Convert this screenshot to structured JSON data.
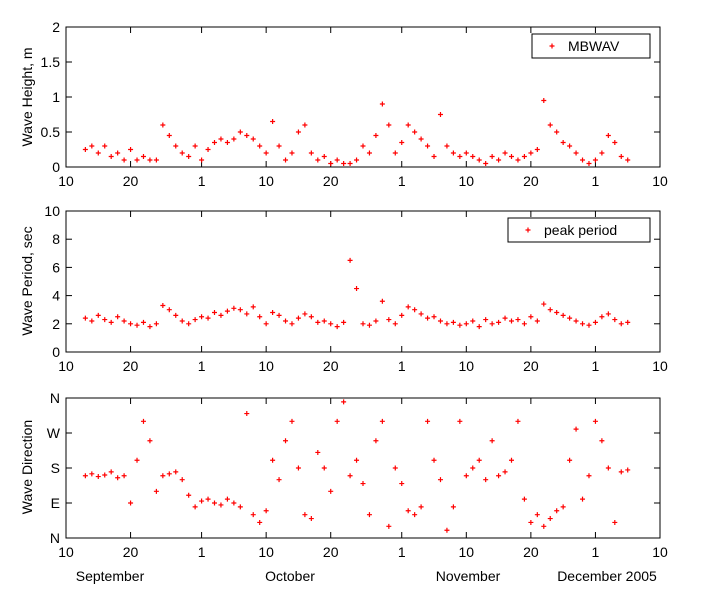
{
  "chart_data": [
    {
      "type": "scatter",
      "ylabel": "Wave Height, m",
      "ylim": [
        0,
        2
      ],
      "yticks": [
        0,
        0.5,
        1,
        1.5,
        2
      ],
      "ytick_labels": [
        "0",
        "0.5",
        "1",
        "1.5",
        "2"
      ],
      "xticks": [
        "10",
        "20",
        "1",
        "10",
        "20",
        "1",
        "10",
        "20",
        "1",
        "10"
      ],
      "legend": {
        "position": "top-right",
        "label": "MBWAV"
      },
      "marker_color": "#ff0000",
      "series": [
        {
          "name": "MBWAV",
          "x_day_of_2005": [
            256,
            257,
            258,
            259,
            260,
            261,
            262,
            263,
            264,
            265,
            266,
            267,
            268,
            269,
            270,
            271,
            272,
            273,
            274,
            275,
            276,
            277,
            278,
            279,
            280,
            281,
            282,
            283,
            284,
            285,
            286,
            287,
            288,
            289,
            290,
            291,
            292,
            293,
            294,
            295,
            296,
            297,
            298,
            299,
            300,
            301,
            302,
            303,
            304,
            305,
            306,
            307,
            308,
            309,
            310,
            311,
            312,
            313,
            314,
            315,
            316,
            317,
            318,
            319,
            320,
            321,
            322,
            323,
            324,
            325,
            326,
            327,
            328,
            329,
            330,
            331,
            332,
            333,
            334,
            335,
            336,
            337,
            338,
            339,
            340
          ],
          "y": [
            0.25,
            0.3,
            0.2,
            0.3,
            0.15,
            0.2,
            0.1,
            0.25,
            0.1,
            0.15,
            0.1,
            0.1,
            0.6,
            0.45,
            0.3,
            0.2,
            0.15,
            0.3,
            0.1,
            0.25,
            0.35,
            0.4,
            0.35,
            0.4,
            0.5,
            0.45,
            0.4,
            0.3,
            0.2,
            0.65,
            0.3,
            0.1,
            0.2,
            0.5,
            0.6,
            0.2,
            0.1,
            0.15,
            0.05,
            0.1,
            0.05,
            0.05,
            0.1,
            0.3,
            0.2,
            0.45,
            0.9,
            0.6,
            0.2,
            0.35,
            0.6,
            0.5,
            0.4,
            0.3,
            0.15,
            0.75,
            0.3,
            0.2,
            0.15,
            0.2,
            0.15,
            0.1,
            0.05,
            0.15,
            0.1,
            0.2,
            0.15,
            0.1,
            0.15,
            0.2,
            0.25,
            0.95,
            0.6,
            0.5,
            0.35,
            0.3,
            0.2,
            0.1,
            0.05,
            0.1,
            0.2,
            0.45,
            0.35,
            0.15,
            0.1
          ]
        }
      ]
    },
    {
      "type": "scatter",
      "ylabel": "Wave Period, sec",
      "ylim": [
        0,
        10
      ],
      "yticks": [
        0,
        2,
        4,
        6,
        8,
        10
      ],
      "ytick_labels": [
        "0",
        "2",
        "4",
        "6",
        "8",
        "10"
      ],
      "xticks": [
        "10",
        "20",
        "1",
        "10",
        "20",
        "1",
        "10",
        "20",
        "1",
        "10"
      ],
      "legend": {
        "position": "top-right",
        "label": "peak period"
      },
      "marker_color": "#ff0000",
      "series": [
        {
          "name": "peak period",
          "x_day_of_2005": [
            256,
            257,
            258,
            259,
            260,
            261,
            262,
            263,
            264,
            265,
            266,
            267,
            268,
            269,
            270,
            271,
            272,
            273,
            274,
            275,
            276,
            277,
            278,
            279,
            280,
            281,
            282,
            283,
            284,
            285,
            286,
            287,
            288,
            289,
            290,
            291,
            292,
            293,
            294,
            295,
            296,
            297,
            298,
            299,
            300,
            301,
            302,
            303,
            304,
            305,
            306,
            307,
            308,
            309,
            310,
            311,
            312,
            313,
            314,
            315,
            316,
            317,
            318,
            319,
            320,
            321,
            322,
            323,
            324,
            325,
            326,
            327,
            328,
            329,
            330,
            331,
            332,
            333,
            334,
            335,
            336,
            337,
            338,
            339,
            340
          ],
          "y": [
            2.4,
            2.2,
            2.6,
            2.3,
            2.1,
            2.5,
            2.2,
            2.0,
            1.9,
            2.1,
            1.8,
            2.0,
            3.3,
            3.0,
            2.6,
            2.2,
            2.0,
            2.3,
            2.5,
            2.4,
            2.8,
            2.6,
            2.9,
            3.1,
            3.0,
            2.7,
            3.2,
            2.5,
            2.0,
            2.8,
            2.6,
            2.2,
            2.0,
            2.4,
            2.7,
            2.5,
            2.1,
            2.2,
            2.0,
            1.8,
            2.1,
            6.5,
            4.5,
            2.0,
            1.9,
            2.2,
            3.6,
            2.3,
            2.0,
            2.6,
            3.2,
            3.0,
            2.7,
            2.4,
            2.5,
            2.2,
            2.0,
            2.1,
            1.9,
            2.0,
            2.2,
            1.8,
            2.3,
            2.0,
            2.1,
            2.4,
            2.2,
            2.3,
            2.0,
            2.5,
            2.2,
            3.4,
            3.0,
            2.8,
            2.6,
            2.4,
            2.2,
            2.0,
            1.9,
            2.1,
            2.5,
            2.7,
            2.3,
            2.0,
            2.1
          ]
        }
      ]
    },
    {
      "type": "scatter",
      "ylabel": "Wave Direction",
      "ylim": [
        0,
        360
      ],
      "yticks": [
        0,
        90,
        180,
        270,
        360
      ],
      "ytick_labels": [
        "N",
        "E",
        "S",
        "W",
        "N"
      ],
      "xticks": [
        "10",
        "20",
        "1",
        "10",
        "20",
        "1",
        "10",
        "20",
        "1",
        "10"
      ],
      "xlabels": [
        "September",
        "October",
        "November",
        "December 2005"
      ],
      "marker_color": "#ff0000",
      "series": [
        {
          "name": "",
          "x_day_of_2005": [
            256,
            257,
            258,
            259,
            260,
            261,
            262,
            263,
            264,
            265,
            266,
            267,
            268,
            269,
            270,
            271,
            272,
            273,
            274,
            275,
            276,
            277,
            278,
            279,
            280,
            281,
            282,
            283,
            284,
            285,
            286,
            287,
            288,
            289,
            290,
            291,
            292,
            293,
            294,
            295,
            296,
            297,
            298,
            299,
            300,
            301,
            302,
            303,
            304,
            305,
            306,
            307,
            308,
            309,
            310,
            311,
            312,
            313,
            314,
            315,
            316,
            317,
            318,
            319,
            320,
            321,
            322,
            323,
            324,
            325,
            326,
            327,
            328,
            329,
            330,
            331,
            332,
            333,
            334,
            335,
            336,
            337,
            338,
            339,
            340
          ],
          "y": [
            160,
            165,
            158,
            162,
            170,
            155,
            160,
            90,
            200,
            300,
            250,
            120,
            160,
            165,
            170,
            150,
            110,
            80,
            95,
            100,
            90,
            85,
            100,
            90,
            80,
            320,
            60,
            40,
            70,
            200,
            150,
            250,
            300,
            180,
            60,
            50,
            220,
            180,
            120,
            300,
            350,
            160,
            200,
            140,
            60,
            250,
            300,
            30,
            180,
            140,
            70,
            60,
            80,
            300,
            200,
            150,
            20,
            80,
            300,
            160,
            180,
            200,
            150,
            250,
            160,
            170,
            200,
            300,
            100,
            40,
            60,
            30,
            50,
            70,
            80,
            200,
            280,
            100,
            160,
            300,
            250,
            180,
            40,
            170,
            175
          ]
        }
      ]
    }
  ]
}
